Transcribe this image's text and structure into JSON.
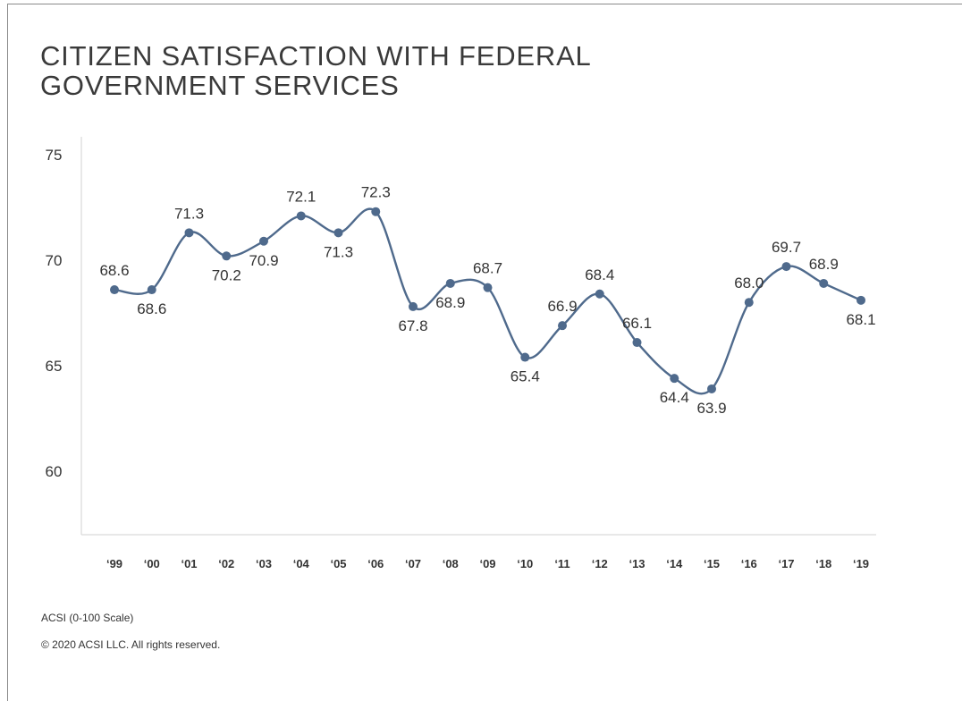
{
  "title": {
    "line1": "CITIZEN SATISFACTION WITH FEDERAL",
    "line2": "GOVERNMENT SERVICES"
  },
  "footer": {
    "scale_note": "ACSI (0-100 Scale)",
    "copyright": "© 2020 ACSI LLC. All rights reserved."
  },
  "chart_data": {
    "type": "line",
    "title": "CITIZEN SATISFACTION WITH FEDERAL GOVERNMENT SERVICES",
    "xlabel": "",
    "ylabel": "",
    "categories": [
      "'99",
      "'00",
      "'01",
      "'02",
      "'03",
      "'04",
      "'05",
      "'06",
      "'07",
      "'08",
      "'09",
      "'10",
      "'11",
      "'12",
      "'13",
      "'14",
      "'15",
      "'16",
      "'17",
      "'18",
      "'19"
    ],
    "series": [
      {
        "values": [
          68.6,
          68.6,
          71.3,
          70.2,
          70.9,
          72.1,
          71.3,
          72.3,
          67.8,
          68.9,
          68.7,
          65.4,
          66.9,
          68.4,
          66.1,
          64.4,
          63.9,
          68.0,
          69.7,
          68.9,
          68.1
        ],
        "color": "#4f6a8c"
      }
    ],
    "ylim": [
      57,
      75
    ],
    "yticks": [
      60,
      65,
      70,
      75
    ],
    "grid": false,
    "label_positions": [
      "above",
      "below",
      "above",
      "below",
      "below",
      "above",
      "below",
      "above",
      "below",
      "below",
      "above",
      "below",
      "above",
      "above",
      "above",
      "below",
      "below",
      "above",
      "above",
      "above",
      "below"
    ]
  }
}
